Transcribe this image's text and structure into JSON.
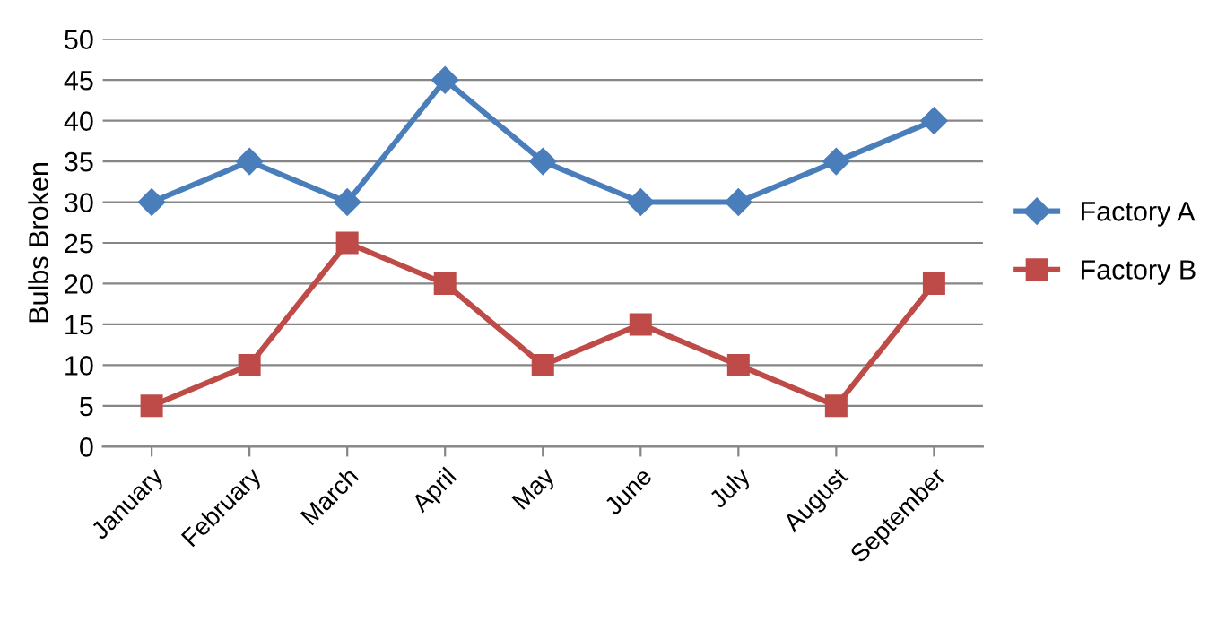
{
  "chart_data": {
    "type": "line",
    "ylabel": "Bulbs Broken",
    "categories": [
      "January",
      "February",
      "March",
      "April",
      "May",
      "June",
      "July",
      "August",
      "September"
    ],
    "series": [
      {
        "name": "Factory A",
        "color": "#4a7ebb",
        "marker": "diamond",
        "values": [
          30,
          35,
          30,
          45,
          35,
          30,
          30,
          35,
          40
        ]
      },
      {
        "name": "Factory B",
        "color": "#be4b48",
        "marker": "square",
        "values": [
          5,
          10,
          25,
          20,
          10,
          15,
          10,
          5,
          20
        ]
      }
    ],
    "ylim": [
      0,
      50
    ],
    "yticks": [
      0,
      5,
      10,
      15,
      20,
      25,
      30,
      35,
      40,
      45,
      50
    ],
    "grid": "y",
    "legend": "right",
    "line_style": "solid"
  }
}
